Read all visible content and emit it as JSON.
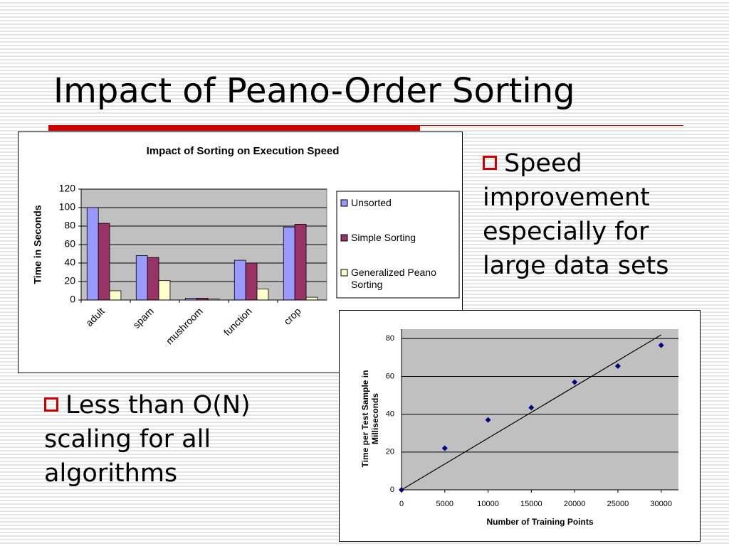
{
  "slide_title": "Impact of Peano-Order Sorting",
  "bullets": [
    "Speed improvement especially for large data sets",
    "Less than O(N) scaling for all algorithms"
  ],
  "chart_data": [
    {
      "type": "bar",
      "title": "Impact of Sorting on Execution Speed",
      "ylabel": "Time in Seconds",
      "categories": [
        "adult",
        "spam",
        "mushroom",
        "function",
        "crop"
      ],
      "series": [
        {
          "name": "Unsorted",
          "color": "#9999ff",
          "values": [
            100,
            48,
            2,
            43,
            79
          ]
        },
        {
          "name": "Simple Sorting",
          "color": "#993366",
          "values": [
            83,
            46,
            2,
            40,
            82
          ]
        },
        {
          "name": "Generalized Peano Sorting",
          "color": "#ffffcc",
          "values": [
            10,
            21,
            1,
            12,
            3
          ]
        }
      ],
      "ylim": [
        0,
        120
      ],
      "yticks": [
        0,
        20,
        40,
        60,
        80,
        100,
        120
      ],
      "grid": true,
      "legend": "right"
    },
    {
      "type": "scatter",
      "xlabel": "Number of Training Points",
      "ylabel": "Time per Test Sample in Milliseconds",
      "x": [
        0,
        5000,
        10000,
        15000,
        20000,
        25000,
        30000
      ],
      "values": [
        0,
        22,
        37,
        43.5,
        57,
        65.5,
        76.5
      ],
      "color": "#000080",
      "trendline": {
        "x": [
          0,
          30000
        ],
        "values": [
          0,
          82
        ]
      },
      "xlim": [
        0,
        32000
      ],
      "xticks": [
        0,
        5000,
        10000,
        15000,
        20000,
        25000,
        30000
      ],
      "ylim": [
        0,
        85
      ],
      "yticks": [
        0,
        20,
        40,
        60,
        80
      ],
      "grid": true
    }
  ]
}
